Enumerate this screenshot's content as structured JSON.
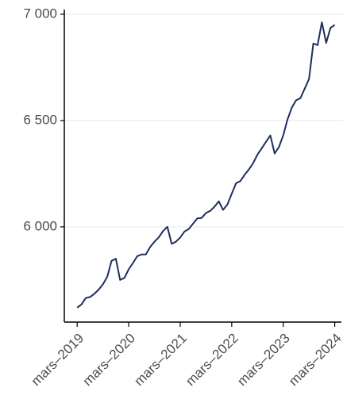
{
  "chart_data": {
    "type": "line",
    "x": [
      "2019-03",
      "2019-04",
      "2019-05",
      "2019-06",
      "2019-07",
      "2019-08",
      "2019-09",
      "2019-10",
      "2019-11",
      "2019-12",
      "2020-01",
      "2020-02",
      "2020-03",
      "2020-04",
      "2020-05",
      "2020-06",
      "2020-07",
      "2020-08",
      "2020-09",
      "2020-10",
      "2020-11",
      "2020-12",
      "2021-01",
      "2021-02",
      "2021-03",
      "2021-04",
      "2021-05",
      "2021-06",
      "2021-07",
      "2021-08",
      "2021-09",
      "2021-10",
      "2021-11",
      "2021-12",
      "2022-01",
      "2022-02",
      "2022-03",
      "2022-04",
      "2022-05",
      "2022-06",
      "2022-07",
      "2022-08",
      "2022-09",
      "2022-10",
      "2022-11",
      "2022-12",
      "2023-01",
      "2023-02",
      "2023-03",
      "2023-04",
      "2023-05",
      "2023-06",
      "2023-07",
      "2023-08",
      "2023-09",
      "2023-10",
      "2023-11",
      "2023-12",
      "2024-01",
      "2024-02",
      "2024-03"
    ],
    "series": [
      {
        "color": "#1f2d5c",
        "values": [
          5620,
          5635,
          5665,
          5670,
          5685,
          5705,
          5730,
          5765,
          5840,
          5850,
          5750,
          5760,
          5800,
          5830,
          5862,
          5870,
          5870,
          5905,
          5930,
          5950,
          5980,
          6000,
          5920,
          5930,
          5950,
          5978,
          5990,
          6015,
          6040,
          6042,
          6065,
          6075,
          6095,
          6120,
          6080,
          6105,
          6155,
          6205,
          6215,
          6245,
          6270,
          6300,
          6340,
          6370,
          6400,
          6430,
          6345,
          6375,
          6430,
          6505,
          6560,
          6595,
          6605,
          6650,
          6695,
          6862,
          6855,
          6962,
          6865,
          6935,
          6950
        ]
      }
    ],
    "xlim": [
      "2018-12",
      "2024-04"
    ],
    "xticks": [
      {
        "value": "2019-03",
        "label": "mars–2019"
      },
      {
        "value": "2020-03",
        "label": "mars–2020"
      },
      {
        "value": "2021-03",
        "label": "mars–2021"
      },
      {
        "value": "2022-03",
        "label": "mars–2022"
      },
      {
        "value": "2023-03",
        "label": "mars–2023"
      },
      {
        "value": "2024-03",
        "label": "mars–2024"
      }
    ],
    "ylim": [
      5552,
      7022
    ],
    "yticks": [
      {
        "value": 6000,
        "label": "6 000"
      },
      {
        "value": 6500,
        "label": "6 500"
      },
      {
        "value": 7000,
        "label": "7 000"
      }
    ],
    "grid": true
  }
}
